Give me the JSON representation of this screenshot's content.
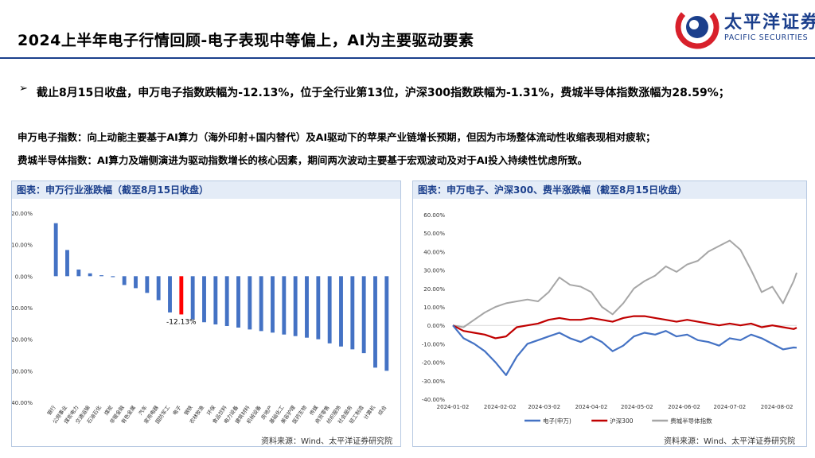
{
  "page": {
    "title": "2024上半年电子行情回顾-电子表现中等偏上，AI为主要驱动要素",
    "logo": {
      "cn": "太平洋证券",
      "en": "PACIFIC SECURITIES"
    },
    "bullet_symbol": "➢",
    "paragraph1": "截止8月15日收盘，申万电子指数跌幅为-12.13%，位于全行业第13位，沪深300指数跌幅为-1.31%，费城半导体指数涨幅为28.59%；",
    "paragraph2": "申万电子指数：向上动能主要基于AI算力（海外印射+国内替代）及AI驱动下的苹果产业链增长预期，但因为市场整体流动性收缩表现相对疲软；",
    "paragraph3": "费城半导体指数：AI算力及端侧演进为驱动指数增长的核心因素，期间两次波动主要基于宏观波动及对于AI投入持续性忧虑所致。",
    "left_panel_title": "图表：申万行业涨跌幅（截至8月15日收盘）",
    "right_panel_title": "图表：申万电子、沪深300、费半涨跌幅（截至8月15日收盘）",
    "source_left": "资料来源：Wind、太平洋证券研究院",
    "source_right": "资料来源：Wind、太平洋证券研究院"
  },
  "chart_data": [
    {
      "type": "bar",
      "categories": [
        "银行",
        "公用事业",
        "煤炭电力",
        "交通运输",
        "石油石化",
        "煤炭",
        "非银金融",
        "有色金属",
        "汽车",
        "家用电器",
        "国防军工",
        "电子",
        "钢铁",
        "农林牧渔",
        "环保",
        "食品饮料",
        "电力设备",
        "建筑材料",
        "机械设备",
        "房地产",
        "基础化工",
        "美容护理",
        "医药生物",
        "传媒",
        "商贸零售",
        "纺织服饰",
        "社会服务",
        "轻工制造",
        "计算机",
        "综合"
      ],
      "values": [
        16.8,
        8.3,
        2.1,
        0.9,
        0.3,
        -0.3,
        -2.8,
        -3.8,
        -5.3,
        -7.6,
        -11.5,
        -12.13,
        -13.7,
        -14.6,
        -15.3,
        -15.8,
        -16.3,
        -16.9,
        -17.4,
        -17.9,
        -18.5,
        -19.0,
        -19.5,
        -20.0,
        -21.3,
        -22.3,
        -23.2,
        -24.4,
        -29.0,
        -30.0
      ],
      "highlight_index": 11,
      "highlight_label": "-12.13%",
      "colors": {
        "bar": "#4472c4",
        "highlight": "#ff0000"
      },
      "ylim": [
        -40,
        20
      ],
      "yticks": [
        "20.00%",
        "10.00%",
        "0.00%",
        "-10.00%",
        "-20.00%",
        "-30.00%",
        "-40.00%"
      ],
      "grid": false
    },
    {
      "type": "line",
      "x": [
        "2024-01-02",
        "2024-01-09",
        "2024-01-16",
        "2024-01-23",
        "2024-01-30",
        "2024-02-06",
        "2024-02-13",
        "2024-02-20",
        "2024-02-27",
        "2024-03-05",
        "2024-03-12",
        "2024-03-19",
        "2024-03-26",
        "2024-04-02",
        "2024-04-09",
        "2024-04-16",
        "2024-04-23",
        "2024-04-30",
        "2024-05-07",
        "2024-05-14",
        "2024-05-21",
        "2024-05-28",
        "2024-06-04",
        "2024-06-11",
        "2024-06-18",
        "2024-06-25",
        "2024-07-02",
        "2024-07-09",
        "2024-07-16",
        "2024-07-23",
        "2024-07-30",
        "2024-08-06",
        "2024-08-13",
        "2024-08-15"
      ],
      "xticks": [
        "2024-01-02",
        "2024-02-02",
        "2024-03-02",
        "2024-04-02",
        "2024-05-02",
        "2024-06-02",
        "2024-07-02",
        "2024-08-02"
      ],
      "yticks": [
        "60.00%",
        "50.00%",
        "40.00%",
        "30.00%",
        "20.00%",
        "10.00%",
        "0.00%",
        "-10.00%",
        "-20.00%",
        "-30.00%",
        "-40.00%"
      ],
      "ylim": [
        -40,
        60
      ],
      "legend_position": "bottom",
      "series": [
        {
          "name": "电子(申万)",
          "color": "#4472c4",
          "values": [
            0,
            -7,
            -10,
            -14,
            -20,
            -27,
            -17,
            -10,
            -8,
            -6,
            -4,
            -7,
            -9,
            -6,
            -9,
            -14,
            -11,
            -6,
            -4,
            -5,
            -3,
            -6,
            -5,
            -8,
            -9,
            -11,
            -7,
            -8,
            -5,
            -7,
            -10,
            -13,
            -12,
            -12.13
          ]
        },
        {
          "name": "沪深300",
          "color": "#c00000",
          "values": [
            0,
            -3,
            -4,
            -5,
            -7,
            -6,
            -1,
            0,
            1,
            3,
            4,
            3,
            3,
            4,
            3,
            2,
            4,
            5,
            5,
            4,
            3,
            2,
            3,
            2,
            1,
            0,
            1,
            0,
            1,
            -1,
            0,
            -1,
            -2,
            -1.31
          ]
        },
        {
          "name": "费城半导体指数",
          "color": "#a6a6a6",
          "values": [
            0,
            -1,
            3,
            7,
            10,
            12,
            13,
            14,
            13,
            18,
            26,
            22,
            21,
            18,
            10,
            6,
            12,
            20,
            24,
            27,
            32,
            29,
            33,
            35,
            40,
            43,
            46,
            41,
            30,
            18,
            21,
            12,
            24,
            28.59
          ]
        }
      ]
    }
  ]
}
